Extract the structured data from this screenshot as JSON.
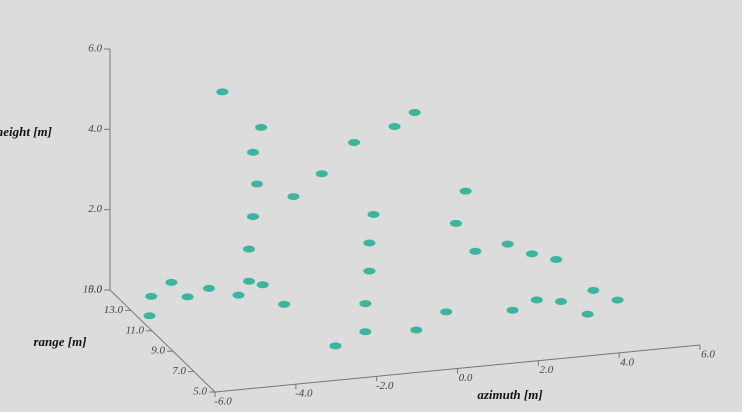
{
  "chart_data": {
    "type": "scatter3d",
    "xlabel": "azimuth [m]",
    "ylabel": "range [m]",
    "zlabel": "height [m]",
    "xlim": [
      -6,
      6
    ],
    "ylim": [
      5,
      15
    ],
    "zlim": [
      0,
      6
    ],
    "xticks": [
      {
        "value": -6,
        "label": "-6.0"
      },
      {
        "value": -4,
        "label": "-4.0"
      },
      {
        "value": -2,
        "label": "-2.0"
      },
      {
        "value": 0,
        "label": "0.0"
      },
      {
        "value": 2,
        "label": "2.0"
      },
      {
        "value": 4,
        "label": "4.0"
      },
      {
        "value": 6,
        "label": "6.0"
      }
    ],
    "yticks": [
      {
        "value": 5,
        "label": "5.0"
      },
      {
        "value": 7,
        "label": "7.0"
      },
      {
        "value": 9,
        "label": "9.0"
      },
      {
        "value": 11,
        "label": "11.0"
      },
      {
        "value": 13,
        "label": "13.0"
      },
      {
        "value": 15,
        "label": "15.0"
      }
    ],
    "zticks": [
      {
        "value": 0,
        "label": "0.0"
      },
      {
        "value": 2,
        "label": "2.0"
      },
      {
        "value": 4,
        "label": "4.0"
      },
      {
        "value": 6,
        "label": "6.0"
      }
    ],
    "color": "#1fae92",
    "x": [
      -5.5,
      -5,
      -4.6,
      -5.8,
      -4.2,
      -3.6,
      -3,
      -2.6,
      -3.6,
      -3.6,
      -3.5,
      -3.4,
      -3.5,
      -3.3,
      -2.5,
      -1.8,
      -1,
      0,
      0.5,
      -1.5,
      -1.5,
      -1.4,
      -1.4,
      -1.3,
      -2.5,
      -0.5,
      0.5,
      1,
      1.5,
      2,
      2.8,
      3.4,
      4,
      2.4,
      3,
      3.6,
      4.4,
      5,
      4,
      -4
    ],
    "y": [
      13,
      13,
      13,
      12,
      12.5,
      12,
      12,
      11.5,
      11,
      11,
      11,
      11,
      11,
      11,
      11,
      11,
      11,
      11,
      11,
      8,
      8,
      8,
      8,
      8,
      7,
      7,
      8,
      9,
      10,
      11,
      11,
      11,
      11,
      9,
      9,
      9,
      9,
      9,
      8,
      12
    ],
    "z": [
      0.3,
      0.6,
      0.2,
      0.1,
      0.5,
      0.4,
      0.6,
      0.2,
      1,
      1.8,
      2.6,
      3.4,
      4.2,
      4.8,
      3,
      3.5,
      4.2,
      4.5,
      4.8,
      0.3,
      1,
      1.8,
      2.5,
      3.2,
      0.3,
      0.5,
      0.6,
      2.5,
      3,
      1.2,
      1.3,
      1,
      0.8,
      0.2,
      0.4,
      0.3,
      0.5,
      0.2,
      0.2,
      5.5
    ]
  }
}
